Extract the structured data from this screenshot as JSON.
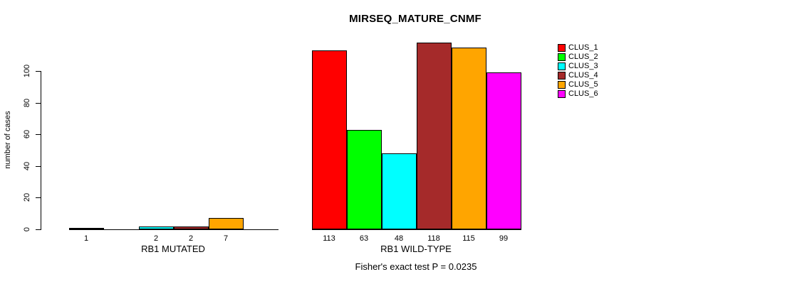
{
  "title": "MIRSEQ_MATURE_CNMF",
  "y_axis": {
    "label": "number of cases",
    "tick_labels": [
      "0",
      "20",
      "40",
      "60",
      "80",
      "100"
    ]
  },
  "footer": "Fisher's exact test P = 0.0235",
  "legend": {
    "items": [
      {
        "label": "CLUS_1",
        "color": "#ff0000"
      },
      {
        "label": "CLUS_2",
        "color": "#00ff00"
      },
      {
        "label": "CLUS_3",
        "color": "#00ffff"
      },
      {
        "label": "CLUS_4",
        "color": "#a52a2a"
      },
      {
        "label": "CLUS_5",
        "color": "#ffa500"
      },
      {
        "label": "CLUS_6",
        "color": "#ff00ff"
      }
    ]
  },
  "chart_data": {
    "type": "bar",
    "title": "MIRSEQ_MATURE_CNMF",
    "xlabel": "",
    "ylabel": "number of cases",
    "ylim": [
      0,
      118
    ],
    "yticks": [
      0,
      20,
      40,
      60,
      80,
      100
    ],
    "grid": false,
    "legend_position": "right",
    "series": [
      "CLUS_1",
      "CLUS_2",
      "CLUS_3",
      "CLUS_4",
      "CLUS_5",
      "CLUS_6"
    ],
    "series_colors": [
      "#ff0000",
      "#00ff00",
      "#00ffff",
      "#a52a2a",
      "#ffa500",
      "#ff00ff"
    ],
    "groups": [
      {
        "label": "RB1 MUTATED",
        "values": [
          1,
          0,
          2,
          2,
          7,
          0
        ],
        "bar_labels": [
          "1",
          "",
          "2",
          "2",
          "7",
          ""
        ]
      },
      {
        "label": "RB1 WILD-TYPE",
        "values": [
          113,
          63,
          48,
          118,
          115,
          99
        ],
        "bar_labels": [
          "113",
          "63",
          "48",
          "118",
          "115",
          "99"
        ]
      }
    ],
    "annotation": "Fisher's exact test P = 0.0235"
  }
}
